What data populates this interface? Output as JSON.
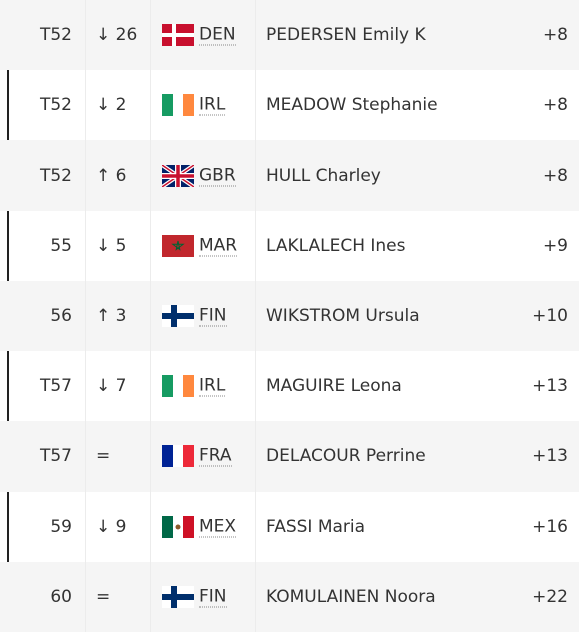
{
  "rows": [
    {
      "position": "T52",
      "movement": "↓ 26",
      "country": "DEN",
      "name": "PEDERSEN Emily K",
      "score": "+8"
    },
    {
      "position": "T52",
      "movement": "↓ 2",
      "country": "IRL",
      "name": "MEADOW Stephanie",
      "score": "+8"
    },
    {
      "position": "T52",
      "movement": "↑ 6",
      "country": "GBR",
      "name": "HULL Charley",
      "score": "+8"
    },
    {
      "position": "55",
      "movement": "↓ 5",
      "country": "MAR",
      "name": "LAKLALECH Ines",
      "score": "+9"
    },
    {
      "position": "56",
      "movement": "↑ 3",
      "country": "FIN",
      "name": "WIKSTROM Ursula",
      "score": "+10"
    },
    {
      "position": "T57",
      "movement": "↓ 7",
      "country": "IRL",
      "name": "MAGUIRE Leona",
      "score": "+13"
    },
    {
      "position": "T57",
      "movement": "=",
      "country": "FRA",
      "name": "DELACOUR Perrine",
      "score": "+13"
    },
    {
      "position": "59",
      "movement": "↓ 9",
      "country": "MEX",
      "name": "FASSI Maria",
      "score": "+16"
    },
    {
      "position": "60",
      "movement": "=",
      "country": "FIN",
      "name": "KOMULAINEN Noora",
      "score": "+22"
    }
  ]
}
